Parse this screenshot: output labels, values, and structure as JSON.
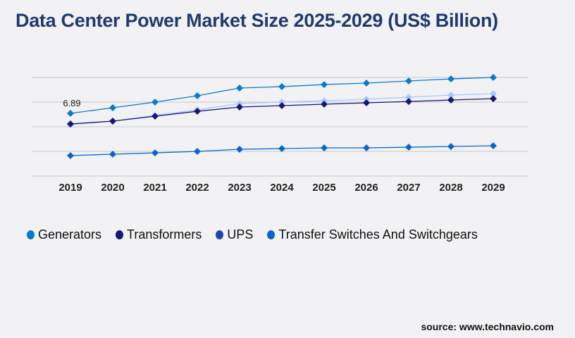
{
  "chart_data": {
    "type": "line",
    "title": "Data Center Power Market Size 2025-2029 (US$ Billion)",
    "x": [
      "2019",
      "2020",
      "2021",
      "2022",
      "2023",
      "2024",
      "2025",
      "2026",
      "2027",
      "2028",
      "2029"
    ],
    "ylim": [
      0,
      10.84
    ],
    "grid": true,
    "legend_position": "bottom",
    "annotations": [
      {
        "series": "Generators",
        "x": "2019",
        "text": "6.89"
      }
    ],
    "series": [
      {
        "name": "Generators",
        "color": "#0a7ad0",
        "values": [
          6.89,
          7.51,
          8.13,
          8.83,
          9.68,
          9.83,
          10.06,
          10.22,
          10.45,
          10.68,
          10.84
        ]
      },
      {
        "name": "Transformers",
        "color": "#1a1675",
        "values": [
          5.73,
          6.04,
          6.58,
          7.12,
          7.59,
          7.74,
          7.9,
          8.05,
          8.2,
          8.36,
          8.51
        ]
      },
      {
        "name": "UPS",
        "color": "#a8c8ff",
        "legend_color": "#1f47a8",
        "values": [
          5.65,
          6.04,
          6.66,
          7.28,
          7.97,
          8.13,
          8.28,
          8.44,
          8.67,
          8.9,
          9.06
        ]
      },
      {
        "name": "Transfer Switches And Switchgears",
        "color": "#0a66cc",
        "values": [
          2.25,
          2.4,
          2.55,
          2.71,
          2.94,
          3.02,
          3.1,
          3.1,
          3.17,
          3.25,
          3.33
        ]
      }
    ]
  },
  "source": "source: www.technavio.com"
}
